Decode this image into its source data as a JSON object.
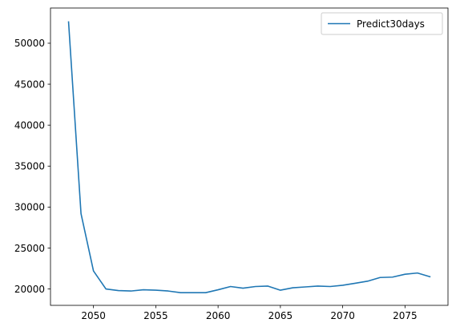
{
  "chart_data": {
    "type": "line",
    "title": "",
    "xlabel": "",
    "ylabel": "",
    "xlim": [
      2046.55,
      2078.45
    ],
    "ylim": [
      18000,
      54300
    ],
    "grid": false,
    "legend_placement": "top-right",
    "x_ticks": [
      2050,
      2055,
      2060,
      2065,
      2070,
      2075
    ],
    "y_ticks": [
      20000,
      25000,
      30000,
      35000,
      40000,
      45000,
      50000
    ],
    "series": [
      {
        "name": "Predict30days",
        "color": "#1f77b4",
        "x": [
          2048,
          2049,
          2050,
          2051,
          2052,
          2053,
          2054,
          2055,
          2056,
          2057,
          2058,
          2059,
          2060,
          2061,
          2062,
          2063,
          2064,
          2065,
          2066,
          2067,
          2068,
          2069,
          2070,
          2071,
          2072,
          2073,
          2074,
          2075,
          2076,
          2077
        ],
        "values": [
          52600,
          29200,
          22200,
          20000,
          19800,
          19750,
          19900,
          19850,
          19750,
          19550,
          19550,
          19550,
          19900,
          20300,
          20100,
          20300,
          20350,
          19850,
          20150,
          20250,
          20350,
          20300,
          20450,
          20700,
          20950,
          21400,
          21450,
          21800,
          21950,
          21500
        ]
      }
    ]
  }
}
